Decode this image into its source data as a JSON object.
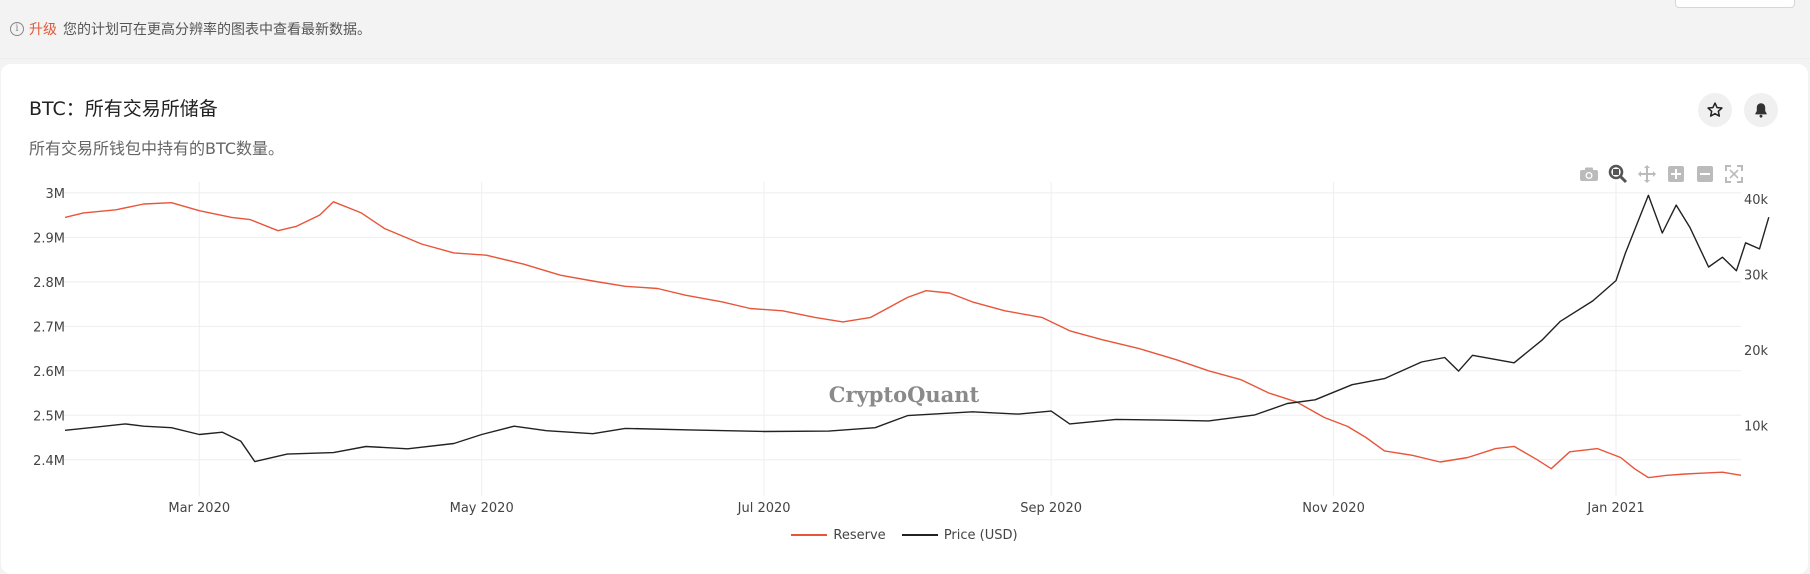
{
  "banner": {
    "icon": "info-icon",
    "upgrade_label": "升级",
    "message": "您的计划可在更高分辨率的图表中查看最新数据。"
  },
  "card": {
    "title": "BTC：所有交易所储备",
    "subtitle": "所有交易所钱包中持有的BTC数量。",
    "star_icon": "star-icon",
    "bell_icon": "bell-icon"
  },
  "toolbar": {
    "tools": [
      "camera-icon",
      "zoom-icon",
      "pan-icon",
      "zoom-in-icon",
      "zoom-out-icon",
      "autoscale-icon"
    ]
  },
  "watermark": "CryptoQuant",
  "colors": {
    "reserve": "#e8553a",
    "price": "#222222"
  },
  "chart_data": {
    "type": "line",
    "x_ticks": [
      "Mar 2020",
      "May 2020",
      "Jul 2020",
      "Sep 2020",
      "Nov 2020",
      "Jan 2021"
    ],
    "x_range": [
      "2020-02-01",
      "2021-01-28"
    ],
    "y_left": {
      "ticks": [
        "2.4M",
        "2.5M",
        "2.6M",
        "2.7M",
        "2.8M",
        "2.9M",
        "3M"
      ],
      "range": [
        2350000,
        3020000
      ]
    },
    "y_right": {
      "ticks": [
        "10k",
        "20k",
        "30k",
        "40k"
      ],
      "range": [
        2500,
        42000
      ]
    },
    "grid": true,
    "legend_position": "bottom-center",
    "series": [
      {
        "name": "Reserve",
        "axis": "left",
        "points": [
          [
            "2020-02-01",
            2945000
          ],
          [
            "2020-02-05",
            2955000
          ],
          [
            "2020-02-12",
            2962000
          ],
          [
            "2020-02-18",
            2975000
          ],
          [
            "2020-02-24",
            2978000
          ],
          [
            "2020-03-01",
            2960000
          ],
          [
            "2020-03-08",
            2945000
          ],
          [
            "2020-03-12",
            2940000
          ],
          [
            "2020-03-18",
            2915000
          ],
          [
            "2020-03-22",
            2925000
          ],
          [
            "2020-03-27",
            2950000
          ],
          [
            "2020-03-30",
            2980000
          ],
          [
            "2020-04-05",
            2955000
          ],
          [
            "2020-04-10",
            2920000
          ],
          [
            "2020-04-18",
            2885000
          ],
          [
            "2020-04-25",
            2865000
          ],
          [
            "2020-05-02",
            2860000
          ],
          [
            "2020-05-10",
            2840000
          ],
          [
            "2020-05-18",
            2815000
          ],
          [
            "2020-05-25",
            2802000
          ],
          [
            "2020-06-01",
            2790000
          ],
          [
            "2020-06-08",
            2785000
          ],
          [
            "2020-06-14",
            2770000
          ],
          [
            "2020-06-22",
            2755000
          ],
          [
            "2020-06-28",
            2740000
          ],
          [
            "2020-07-05",
            2735000
          ],
          [
            "2020-07-12",
            2720000
          ],
          [
            "2020-07-18",
            2710000
          ],
          [
            "2020-07-24",
            2720000
          ],
          [
            "2020-08-01",
            2765000
          ],
          [
            "2020-08-05",
            2780000
          ],
          [
            "2020-08-10",
            2775000
          ],
          [
            "2020-08-15",
            2755000
          ],
          [
            "2020-08-22",
            2735000
          ],
          [
            "2020-08-30",
            2720000
          ],
          [
            "2020-09-05",
            2690000
          ],
          [
            "2020-09-12",
            2670000
          ],
          [
            "2020-09-20",
            2650000
          ],
          [
            "2020-09-28",
            2625000
          ],
          [
            "2020-10-05",
            2600000
          ],
          [
            "2020-10-12",
            2580000
          ],
          [
            "2020-10-18",
            2550000
          ],
          [
            "2020-10-24",
            2530000
          ],
          [
            "2020-10-30",
            2495000
          ],
          [
            "2020-11-04",
            2475000
          ],
          [
            "2020-11-08",
            2450000
          ],
          [
            "2020-11-12",
            2420000
          ],
          [
            "2020-11-18",
            2410000
          ],
          [
            "2020-11-24",
            2395000
          ],
          [
            "2020-11-30",
            2405000
          ],
          [
            "2020-12-06",
            2425000
          ],
          [
            "2020-12-10",
            2430000
          ],
          [
            "2020-12-15",
            2400000
          ],
          [
            "2020-12-18",
            2380000
          ],
          [
            "2020-12-22",
            2418000
          ],
          [
            "2020-12-28",
            2425000
          ],
          [
            "2021-01-02",
            2405000
          ],
          [
            "2021-01-05",
            2380000
          ],
          [
            "2021-01-08",
            2360000
          ],
          [
            "2021-01-12",
            2365000
          ],
          [
            "2021-01-16",
            2368000
          ],
          [
            "2021-01-20",
            2370000
          ],
          [
            "2021-01-24",
            2372000
          ],
          [
            "2021-01-28",
            2365000
          ]
        ]
      },
      {
        "name": "Price (USD)",
        "axis": "right",
        "points": [
          [
            "2020-02-01",
            9350
          ],
          [
            "2020-02-08",
            9800
          ],
          [
            "2020-02-14",
            10200
          ],
          [
            "2020-02-18",
            9900
          ],
          [
            "2020-02-24",
            9700
          ],
          [
            "2020-03-01",
            8800
          ],
          [
            "2020-03-06",
            9100
          ],
          [
            "2020-03-10",
            7900
          ],
          [
            "2020-03-13",
            5200
          ],
          [
            "2020-03-20",
            6200
          ],
          [
            "2020-03-30",
            6400
          ],
          [
            "2020-04-06",
            7200
          ],
          [
            "2020-04-15",
            6900
          ],
          [
            "2020-04-25",
            7600
          ],
          [
            "2020-05-01",
            8800
          ],
          [
            "2020-05-08",
            9900
          ],
          [
            "2020-05-15",
            9300
          ],
          [
            "2020-05-25",
            8900
          ],
          [
            "2020-06-01",
            9600
          ],
          [
            "2020-06-15",
            9400
          ],
          [
            "2020-07-01",
            9200
          ],
          [
            "2020-07-15",
            9250
          ],
          [
            "2020-07-25",
            9700
          ],
          [
            "2020-08-01",
            11300
          ],
          [
            "2020-08-15",
            11800
          ],
          [
            "2020-08-25",
            11500
          ],
          [
            "2020-09-01",
            11900
          ],
          [
            "2020-09-05",
            10200
          ],
          [
            "2020-09-15",
            10800
          ],
          [
            "2020-09-25",
            10700
          ],
          [
            "2020-10-05",
            10600
          ],
          [
            "2020-10-15",
            11400
          ],
          [
            "2020-10-22",
            12900
          ],
          [
            "2020-10-28",
            13400
          ],
          [
            "2020-11-05",
            15400
          ],
          [
            "2020-11-12",
            16200
          ],
          [
            "2020-11-20",
            18400
          ],
          [
            "2020-11-25",
            19000
          ],
          [
            "2020-11-28",
            17200
          ],
          [
            "2020-12-01",
            19300
          ],
          [
            "2020-12-10",
            18300
          ],
          [
            "2020-12-16",
            21300
          ],
          [
            "2020-12-20",
            23800
          ],
          [
            "2020-12-27",
            26500
          ],
          [
            "2021-01-01",
            29200
          ],
          [
            "2021-01-03",
            32800
          ],
          [
            "2021-01-08",
            40500
          ],
          [
            "2021-01-11",
            35500
          ],
          [
            "2021-01-14",
            39200
          ],
          [
            "2021-01-17",
            36200
          ],
          [
            "2021-01-21",
            31000
          ],
          [
            "2021-01-24",
            32300
          ],
          [
            "2021-01-27",
            30500
          ],
          [
            "2021-01-29",
            34200
          ],
          [
            "2021-02-01",
            33400
          ],
          [
            "2021-02-03",
            37600
          ]
        ]
      }
    ]
  }
}
